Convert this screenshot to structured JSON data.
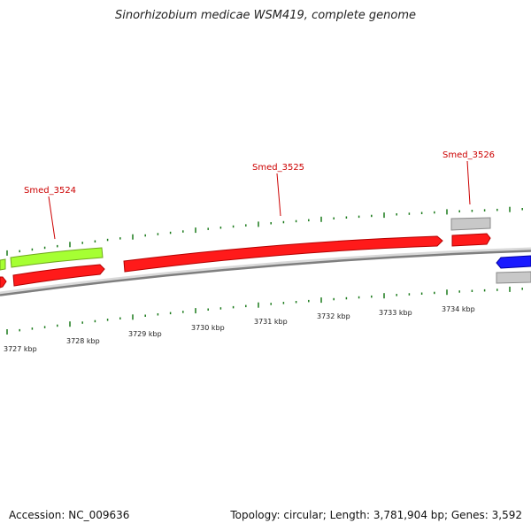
{
  "title": "Sinorhizobium medicae WSM419, complete genome",
  "footer": {
    "accession": "Accession: NC_009636",
    "summary": "Topology: circular; Length: 3,781,904 bp; Genes: 3,592"
  },
  "gene_labels": [
    "Smed_3524",
    "Smed_3525",
    "Smed_3526"
  ],
  "kbp_labels": [
    "3727 kbp",
    "3728 kbp",
    "3729 kbp",
    "3730 kbp",
    "3731 kbp",
    "3732 kbp",
    "3733 kbp",
    "3734 kbp"
  ],
  "colors": {
    "backbone": "#808080",
    "cds_red": "#ff1a1a",
    "cds_green": "#a6ff33",
    "cds_blue": "#1a1aff",
    "cds_gray": "#c8c8c8",
    "label_red": "#cc0000",
    "tick_green": "#1a7a1a"
  }
}
